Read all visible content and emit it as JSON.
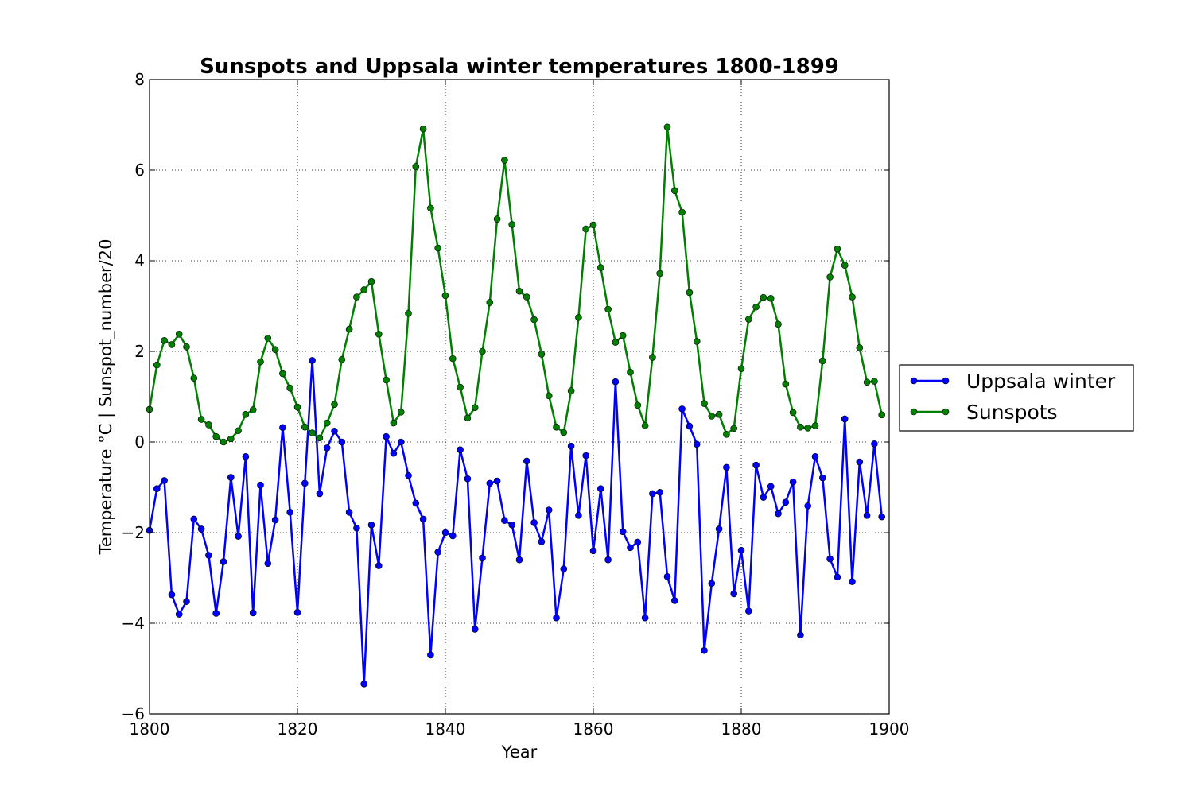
{
  "chart_data": {
    "type": "line",
    "title": "Sunspots and Uppsala winter temperatures 1800-1899",
    "xlabel": "Year",
    "ylabel": "Temperature °C | Sunspot_number/20",
    "xlim": [
      1800,
      1900
    ],
    "ylim": [
      -6,
      8
    ],
    "xticks": [
      1800,
      1820,
      1840,
      1860,
      1880,
      1900
    ],
    "xtick_labels": [
      "1800",
      "1820",
      "1840",
      "1860",
      "1880",
      "1900"
    ],
    "yticks": [
      -6,
      -4,
      -2,
      0,
      2,
      4,
      6,
      8
    ],
    "ytick_labels": [
      "−6",
      "−4",
      "−2",
      "0",
      "2",
      "4",
      "6",
      "8"
    ],
    "grid": true,
    "legend_position": "outside-right",
    "x": [
      1800,
      1801,
      1802,
      1803,
      1804,
      1805,
      1806,
      1807,
      1808,
      1809,
      1810,
      1811,
      1812,
      1813,
      1814,
      1815,
      1816,
      1817,
      1818,
      1819,
      1820,
      1821,
      1822,
      1823,
      1824,
      1825,
      1826,
      1827,
      1828,
      1829,
      1830,
      1831,
      1832,
      1833,
      1834,
      1835,
      1836,
      1837,
      1838,
      1839,
      1840,
      1841,
      1842,
      1843,
      1844,
      1845,
      1846,
      1847,
      1848,
      1849,
      1850,
      1851,
      1852,
      1853,
      1854,
      1855,
      1856,
      1857,
      1858,
      1859,
      1860,
      1861,
      1862,
      1863,
      1864,
      1865,
      1866,
      1867,
      1868,
      1869,
      1870,
      1871,
      1872,
      1873,
      1874,
      1875,
      1876,
      1877,
      1878,
      1879,
      1880,
      1881,
      1882,
      1883,
      1884,
      1885,
      1886,
      1887,
      1888,
      1889,
      1890,
      1891,
      1892,
      1893,
      1894,
      1895,
      1896,
      1897,
      1898,
      1899
    ],
    "series": [
      {
        "name": "Uppsala winter",
        "color": "#0000ff",
        "values": [
          -1.95,
          -1.03,
          -0.85,
          -3.37,
          -3.8,
          -3.52,
          -1.7,
          -1.92,
          -2.5,
          -3.78,
          -2.64,
          -0.78,
          -2.08,
          -0.32,
          -3.77,
          -0.95,
          -2.68,
          -1.72,
          0.32,
          -1.55,
          -3.76,
          -0.91,
          1.8,
          -1.14,
          -0.13,
          0.24,
          0.0,
          -1.55,
          -1.9,
          -5.34,
          -1.83,
          -2.73,
          0.12,
          -0.25,
          0.0,
          -0.74,
          -1.35,
          -1.7,
          -4.7,
          -2.43,
          -2.0,
          -2.07,
          -0.17,
          -0.81,
          -4.13,
          -2.56,
          -0.91,
          -0.86,
          -1.73,
          -1.83,
          -2.6,
          -0.42,
          -1.78,
          -2.2,
          -1.5,
          -3.88,
          -2.8,
          -0.09,
          -1.62,
          -0.3,
          -2.4,
          -1.03,
          -2.6,
          1.33,
          -1.98,
          -2.33,
          -2.21,
          -3.88,
          -1.14,
          -1.11,
          -2.97,
          -3.5,
          0.73,
          0.35,
          -0.05,
          -4.6,
          -3.12,
          -1.92,
          -0.56,
          -3.35,
          -2.39,
          -3.73,
          -0.51,
          -1.22,
          -0.98,
          -1.58,
          -1.33,
          -0.88,
          -4.26,
          -1.41,
          -0.32,
          -0.79,
          -2.58,
          -2.98,
          0.51,
          -3.08,
          -0.44,
          -1.62,
          -0.04,
          -1.65
        ]
      },
      {
        "name": "Sunspots",
        "color": "#007f00",
        "values": [
          0.72,
          1.7,
          2.24,
          2.15,
          2.38,
          2.1,
          1.41,
          0.5,
          0.38,
          0.12,
          0.0,
          0.07,
          0.25,
          0.61,
          0.71,
          1.77,
          2.29,
          2.04,
          1.51,
          1.19,
          0.77,
          0.33,
          0.2,
          0.09,
          0.42,
          0.83,
          1.82,
          2.49,
          3.2,
          3.36,
          3.54,
          2.38,
          1.37,
          0.42,
          0.66,
          2.84,
          6.08,
          6.91,
          5.16,
          4.28,
          3.23,
          1.84,
          1.21,
          0.53,
          0.76,
          2.0,
          3.08,
          4.92,
          6.22,
          4.8,
          3.33,
          3.2,
          2.7,
          1.94,
          1.02,
          0.33,
          0.21,
          1.13,
          2.75,
          4.7,
          4.79,
          3.85,
          2.93,
          2.2,
          2.35,
          1.54,
          0.81,
          0.36,
          1.87,
          3.72,
          6.95,
          5.55,
          5.07,
          3.3,
          2.22,
          0.85,
          0.57,
          0.61,
          0.17,
          0.3,
          1.62,
          2.71,
          2.98,
          3.19,
          3.17,
          2.6,
          1.28,
          0.65,
          0.33,
          0.31,
          0.36,
          1.79,
          3.64,
          4.26,
          3.9,
          3.2,
          2.08,
          1.32,
          1.34,
          0.6
        ]
      }
    ]
  }
}
